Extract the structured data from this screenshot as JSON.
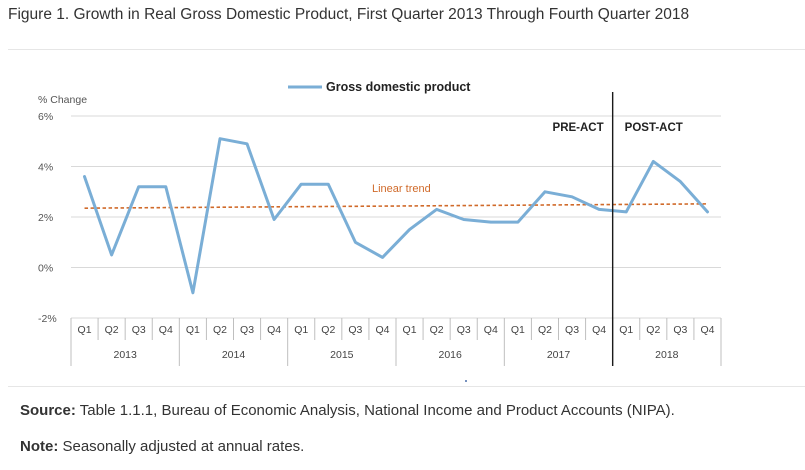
{
  "figure_title": "Figure 1. Growth in Real Gross Domestic Product, First Quarter 2013 Through Fourth Quarter 2018",
  "footnotes": {
    "source_label": "Source:",
    "source_text": " Table 1.1.1, Bureau of Economic Analysis, National Income and Product Accounts (NIPA).",
    "note_label": "Note:",
    "note_text": " Seasonally adjusted at annual rates."
  },
  "colors": {
    "series": "#7aaed6",
    "trend": "#d06a2a",
    "grid": "#d9d9d9",
    "divider": "#1a1a1a"
  },
  "chart_data": {
    "type": "line",
    "title": "",
    "ylabel": "% Change",
    "xlabel": "",
    "ylim": [
      -2,
      6
    ],
    "yticks": [
      {
        "value": 6,
        "label": "6%"
      },
      {
        "value": 4,
        "label": "4%"
      },
      {
        "value": 2,
        "label": "2%"
      },
      {
        "value": 0,
        "label": "0%"
      },
      {
        "value": -2,
        "label": "-2%"
      }
    ],
    "quarters": [
      "Q1",
      "Q2",
      "Q3",
      "Q4",
      "Q1",
      "Q2",
      "Q3",
      "Q4",
      "Q1",
      "Q2",
      "Q3",
      "Q4",
      "Q1",
      "Q2",
      "Q3",
      "Q4",
      "Q1",
      "Q2",
      "Q3",
      "Q4",
      "Q1",
      "Q2",
      "Q3",
      "Q4"
    ],
    "years": [
      "2013",
      "2014",
      "2015",
      "2016",
      "2017",
      "2018"
    ],
    "series": [
      {
        "name": "Gross domestic product",
        "values": [
          3.6,
          0.5,
          3.2,
          3.2,
          -1.0,
          5.1,
          4.9,
          1.9,
          3.3,
          3.3,
          1.0,
          0.4,
          1.5,
          2.3,
          1.9,
          1.8,
          1.8,
          3.0,
          2.8,
          2.3,
          2.2,
          4.2,
          3.4,
          2.2
        ]
      }
    ],
    "trend": {
      "name": "Linear trend",
      "start": 2.35,
      "end": 2.52
    },
    "divider_after_index": 19,
    "annotations": {
      "pre": "PRE-ACT",
      "post": "POST-ACT"
    },
    "legend_position": "top-center"
  }
}
